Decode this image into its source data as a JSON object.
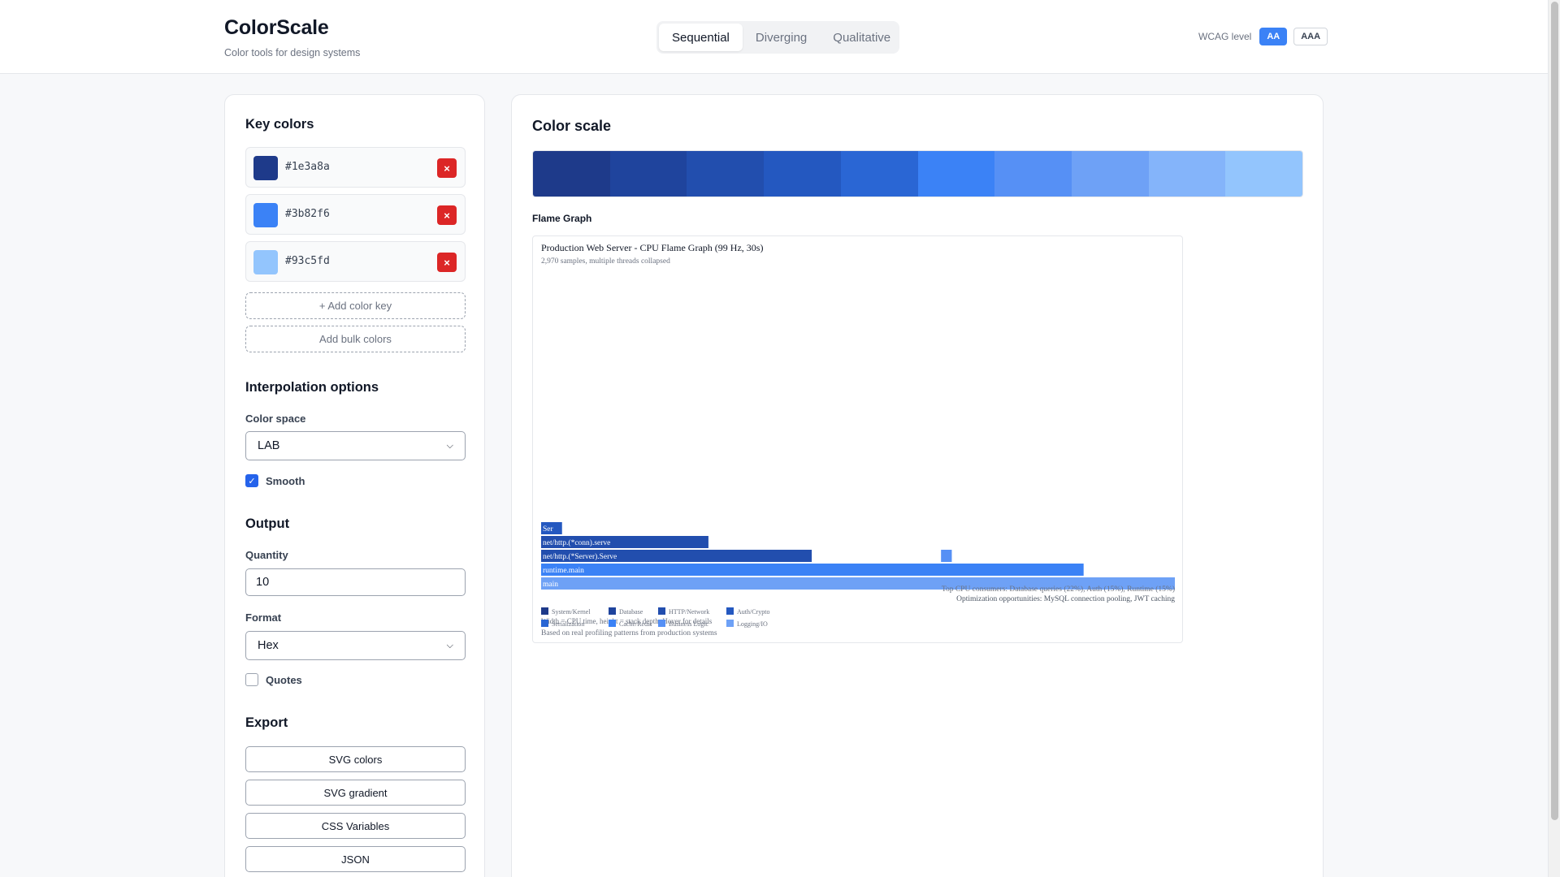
{
  "app": {
    "title": "ColorScale",
    "subtitle": "Color tools for design systems"
  },
  "tabs": [
    {
      "label": "Sequential",
      "active": true
    },
    {
      "label": "Diverging",
      "active": false
    },
    {
      "label": "Qualitative",
      "active": false
    }
  ],
  "wcag": {
    "label": "WCAG level",
    "options": [
      "AA",
      "AAA"
    ],
    "selected": "AA"
  },
  "key_colors": {
    "title": "Key colors",
    "items": [
      {
        "hex": "#1e3a8a",
        "remove_label": "×"
      },
      {
        "hex": "#3b82f6",
        "remove_label": "×"
      },
      {
        "hex": "#93c5fd",
        "remove_label": "×"
      }
    ],
    "add_key_label": "+ Add color key",
    "add_bulk_label": "Add bulk colors"
  },
  "interpolation": {
    "title": "Interpolation options",
    "color_space_label": "Color space",
    "color_space_value": "LAB",
    "smooth_label": "Smooth",
    "smooth_checked": true
  },
  "output": {
    "title": "Output",
    "quantity_label": "Quantity",
    "quantity_value": "10",
    "format_label": "Format",
    "format_value": "Hex",
    "quotes_label": "Quotes",
    "quotes_checked": false
  },
  "export": {
    "title": "Export",
    "buttons": [
      "SVG colors",
      "SVG gradient",
      "CSS Variables",
      "JSON"
    ]
  },
  "color_scale": {
    "title": "Color scale",
    "swatches": [
      "#1e3a8a",
      "#1f449d",
      "#224eae",
      "#2458c0",
      "#2a66d4",
      "#3b82f6",
      "#5690f5",
      "#6ea1f6",
      "#84b4fa",
      "#93c5fd"
    ]
  },
  "flame_graph": {
    "section_label": "Flame Graph",
    "title": "Production Web Server - CPU Flame Graph (99 Hz, 30s)",
    "subtitle": "2,970 samples, multiple threads collapsed",
    "summary_line1": "Top CPU consumers: Database queries (22%), Auth (15%), Runtime (15%)",
    "summary_line2": "Optimization opportunities: MySQL connection pooling, JWT caching",
    "footer_overlap": "Width = CPU time, height = stack depth. Hover for details",
    "footer_source": "Based on real profiling patterns from production systems",
    "legend": [
      {
        "label": "System/Kernel",
        "color": "#1e3a8a"
      },
      {
        "label": "Database",
        "color": "#1f449d"
      },
      {
        "label": "HTTP/Network",
        "color": "#224eae"
      },
      {
        "label": "Auth/Crypto",
        "color": "#2458c0"
      },
      {
        "label": "Serialization",
        "color": "#2a66d4"
      },
      {
        "label": "Cache/Redis",
        "color": "#3b82f6"
      },
      {
        "label": "Business Logic",
        "color": "#5690f5"
      },
      {
        "label": "Logging/IO",
        "color": "#6ea1f6"
      }
    ]
  },
  "chart_data": {
    "type": "flame",
    "title": "Production Web Server - CPU Flame Graph (99 Hz, 30s)",
    "subtitle": "2,970 samples, multiple threads collapsed",
    "total_samples": 2970,
    "frames": [
      {
        "name": "main",
        "depth": 0,
        "start": 0.0,
        "width": 1.0,
        "color": "#6ea1f6"
      },
      {
        "name": "runtime.main",
        "depth": 1,
        "start": 0.0,
        "width": 0.856,
        "color": "#3b82f6"
      },
      {
        "name": "net/http.(*Server).Serve",
        "depth": 2,
        "start": 0.0,
        "width": 0.427,
        "color": "#224eae"
      },
      {
        "name": "",
        "depth": 2,
        "start": 0.631,
        "width": 0.017,
        "color": "#5690f5"
      },
      {
        "name": "net/http.(*conn).serve",
        "depth": 3,
        "start": 0.0,
        "width": 0.264,
        "color": "#224eae"
      },
      {
        "name": "Ser",
        "depth": 4,
        "start": 0.0,
        "width": 0.033,
        "color": "#2458c0"
      }
    ]
  }
}
